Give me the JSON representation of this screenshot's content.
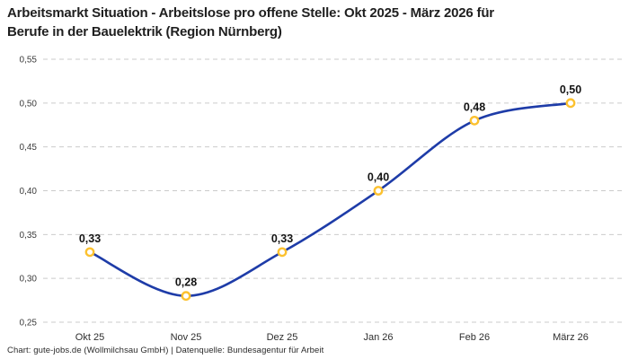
{
  "header": {
    "title_line1": "Arbeitsmarkt Situation - Arbeitslose pro offene Stelle: Okt 2025 - März 2026 für",
    "title_line2": "Berufe in der Bauelektrik (Region Nürnberg)"
  },
  "footer": {
    "credit": "Chart: gute-jobs.de (Wollmilchsau GmbH) | Datenquelle: Bundesagentur für Arbeit"
  },
  "chart_data": {
    "type": "line",
    "title": "Arbeitsmarkt Situation - Arbeitslose pro offene Stelle: Okt 2025 - März 2026 für Berufe in der Bauelektrik (Region Nürnberg)",
    "categories": [
      "Okt 25",
      "Nov 25",
      "Dez 25",
      "Jan 26",
      "Feb 26",
      "März 26"
    ],
    "series": [
      {
        "name": "Arbeitslose pro offene Stelle",
        "values": [
          0.33,
          0.28,
          0.33,
          0.4,
          0.48,
          0.5
        ],
        "point_labels": [
          "0,33",
          "0,28",
          "0,33",
          "0,40",
          "0,48",
          "0,50"
        ]
      }
    ],
    "xlabel": "",
    "ylabel": "",
    "ylim": [
      0.25,
      0.55
    ],
    "y_ticks": [
      0.25,
      0.3,
      0.35,
      0.4,
      0.45,
      0.5,
      0.55
    ],
    "y_tick_labels": [
      "0,25",
      "0,30",
      "0,35",
      "0,40",
      "0,45",
      "0,50",
      "0,55"
    ],
    "grid": "horizontal-dashed",
    "legend_position": "none",
    "colors": {
      "line": "#1e3ca8",
      "marker_ring": "#fcc12f",
      "marker_fill": "#ffffff",
      "gridline": "#cbcbcb",
      "point_label": "#141414",
      "y_tick_label": "#3c3c3c",
      "x_tick_label": "#2e2e2e"
    }
  }
}
